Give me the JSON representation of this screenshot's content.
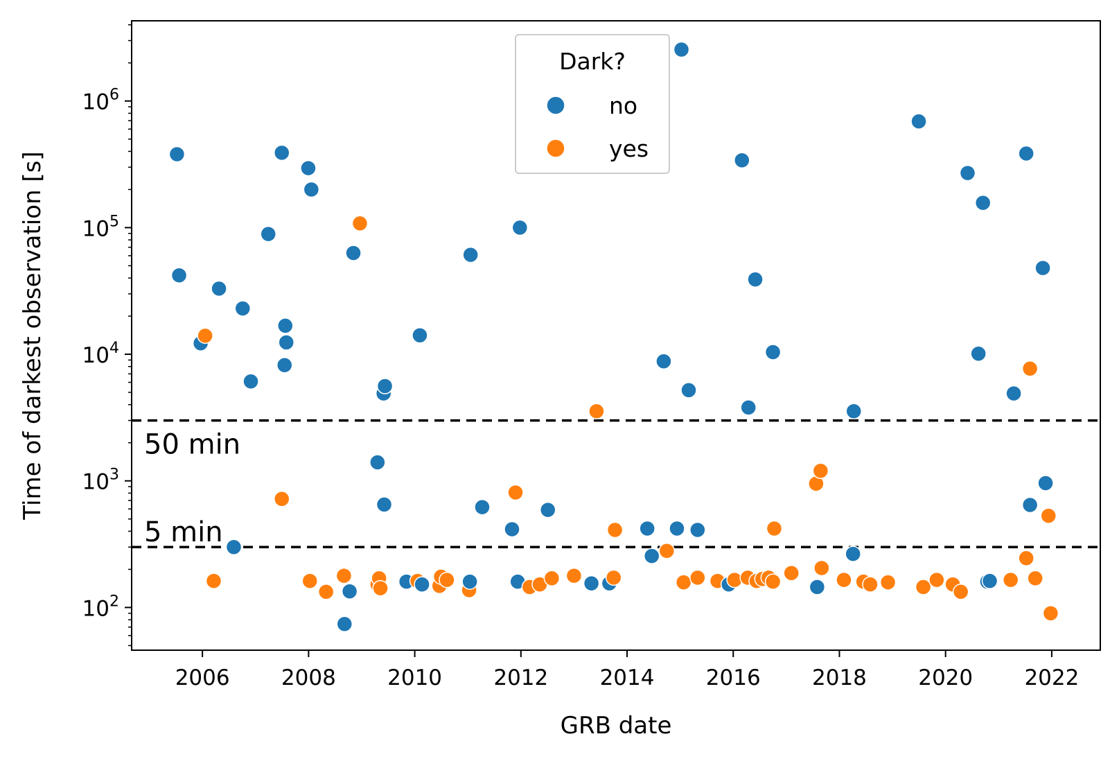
{
  "chart_data": {
    "type": "scatter",
    "xlabel": "GRB date",
    "ylabel": "Time of darkest observation [s]",
    "yscale": "log",
    "xlim": [
      "2004-09-01",
      "2022-12-01"
    ],
    "ylim": [
      46,
      4300000
    ],
    "x_ticks": [
      "2006",
      "2008",
      "2010",
      "2012",
      "2014",
      "2016",
      "2018",
      "2020",
      "2022"
    ],
    "y_ticks": [
      {
        "base": "10",
        "exp": "2",
        "value": 100
      },
      {
        "base": "10",
        "exp": "3",
        "value": 1000
      },
      {
        "base": "10",
        "exp": "4",
        "value": 10000
      },
      {
        "base": "10",
        "exp": "5",
        "value": 100000
      },
      {
        "base": "10",
        "exp": "6",
        "value": 1000000
      }
    ],
    "hlines": [
      {
        "y": 3000,
        "label": "50 min",
        "style": "dashed",
        "color": "#000000"
      },
      {
        "y": 300,
        "label": "5 min",
        "style": "dashed",
        "color": "#000000"
      }
    ],
    "legend": {
      "title": "Dark?",
      "placement": "top-center"
    },
    "series": [
      {
        "name": "no",
        "color": "#1f77b4",
        "points": [
          [
            "2005-07-10",
            380000
          ],
          [
            "2005-07-25",
            42000
          ],
          [
            "2005-12-20",
            12200
          ],
          [
            "2006-04-25",
            33000
          ],
          [
            "2006-08-05",
            300
          ],
          [
            "2006-10-05",
            23000
          ],
          [
            "2006-11-30",
            6100
          ],
          [
            "2007-03-30",
            89000
          ],
          [
            "2007-07-01",
            390000
          ],
          [
            "2007-07-20",
            8200
          ],
          [
            "2007-07-25",
            16800
          ],
          [
            "2007-08-01",
            12400
          ],
          [
            "2007-12-30",
            295000
          ],
          [
            "2008-01-20",
            200000
          ],
          [
            "2008-09-05",
            74
          ],
          [
            "2008-10-10",
            134
          ],
          [
            "2008-11-05",
            63000
          ],
          [
            "2009-04-20",
            1400
          ],
          [
            "2009-06-01",
            4900
          ],
          [
            "2009-06-05",
            650
          ],
          [
            "2009-06-10",
            5600
          ],
          [
            "2009-11-05",
            160
          ],
          [
            "2010-02-05",
            14100
          ],
          [
            "2010-02-20",
            152
          ],
          [
            "2011-01-15",
            160
          ],
          [
            "2011-01-20",
            61000
          ],
          [
            "2011-04-10",
            620
          ],
          [
            "2011-11-01",
            415
          ],
          [
            "2011-12-10",
            160
          ],
          [
            "2011-12-25",
            100000
          ],
          [
            "2012-07-05",
            590
          ],
          [
            "2013-05-01",
            155
          ],
          [
            "2013-09-01",
            155
          ],
          [
            "2014-05-20",
            420
          ],
          [
            "2014-06-20",
            255
          ],
          [
            "2014-09-10",
            8800
          ],
          [
            "2014-12-10",
            420
          ],
          [
            "2015-01-10",
            2550000
          ],
          [
            "2015-03-01",
            5200
          ],
          [
            "2015-05-01",
            410
          ],
          [
            "2015-12-01",
            152
          ],
          [
            "2016-03-01",
            340000
          ],
          [
            "2016-04-15",
            3800
          ],
          [
            "2016-06-01",
            39000
          ],
          [
            "2016-10-01",
            10400
          ],
          [
            "2017-08-01",
            145
          ],
          [
            "2018-04-05",
            265
          ],
          [
            "2018-04-10",
            3550
          ],
          [
            "2019-07-01",
            690000
          ],
          [
            "2020-06-01",
            270000
          ],
          [
            "2020-08-15",
            10100
          ],
          [
            "2020-09-15",
            157000
          ],
          [
            "2020-10-15",
            160
          ],
          [
            "2020-11-01",
            162
          ],
          [
            "2021-04-15",
            4900
          ],
          [
            "2021-07-10",
            385000
          ],
          [
            "2021-08-05",
            645
          ],
          [
            "2021-11-01",
            48000
          ],
          [
            "2021-11-20",
            960
          ]
        ]
      },
      {
        "name": "yes",
        "color": "#ff7f0e",
        "points": [
          [
            "2006-01-20",
            14000
          ],
          [
            "2006-03-20",
            162
          ],
          [
            "2007-07-01",
            720
          ],
          [
            "2008-01-10",
            162
          ],
          [
            "2008-05-01",
            133
          ],
          [
            "2008-09-01",
            178
          ],
          [
            "2008-12-20",
            108000
          ],
          [
            "2009-04-20",
            152
          ],
          [
            "2009-05-01",
            170
          ],
          [
            "2009-05-10",
            142
          ],
          [
            "2010-01-20",
            162
          ],
          [
            "2010-06-20",
            148
          ],
          [
            "2010-07-01",
            175
          ],
          [
            "2010-08-10",
            165
          ],
          [
            "2011-01-10",
            137
          ],
          [
            "2011-11-25",
            810
          ],
          [
            "2012-03-01",
            145
          ],
          [
            "2012-05-10",
            152
          ],
          [
            "2012-08-01",
            170
          ],
          [
            "2013-01-01",
            178
          ],
          [
            "2013-06-05",
            3550
          ],
          [
            "2013-10-01",
            172
          ],
          [
            "2013-10-10",
            410
          ],
          [
            "2014-10-01",
            280
          ],
          [
            "2015-01-25",
            158
          ],
          [
            "2015-05-01",
            172
          ],
          [
            "2015-09-15",
            162
          ],
          [
            "2016-01-10",
            165
          ],
          [
            "2016-04-10",
            172
          ],
          [
            "2016-06-10",
            162
          ],
          [
            "2016-07-20",
            168
          ],
          [
            "2016-09-01",
            172
          ],
          [
            "2016-10-01",
            160
          ],
          [
            "2016-10-10",
            420
          ],
          [
            "2017-02-05",
            187
          ],
          [
            "2017-07-25",
            950
          ],
          [
            "2017-08-25",
            1200
          ],
          [
            "2017-09-01",
            205
          ],
          [
            "2018-02-01",
            165
          ],
          [
            "2018-06-15",
            160
          ],
          [
            "2018-08-01",
            152
          ],
          [
            "2018-12-01",
            158
          ],
          [
            "2019-08-01",
            145
          ],
          [
            "2019-11-01",
            165
          ],
          [
            "2020-02-20",
            152
          ],
          [
            "2020-04-15",
            133
          ],
          [
            "2021-03-25",
            165
          ],
          [
            "2021-07-10",
            245
          ],
          [
            "2021-08-05",
            7700
          ],
          [
            "2021-09-10",
            170
          ],
          [
            "2021-12-10",
            530
          ],
          [
            "2021-12-25",
            90
          ]
        ]
      }
    ]
  }
}
